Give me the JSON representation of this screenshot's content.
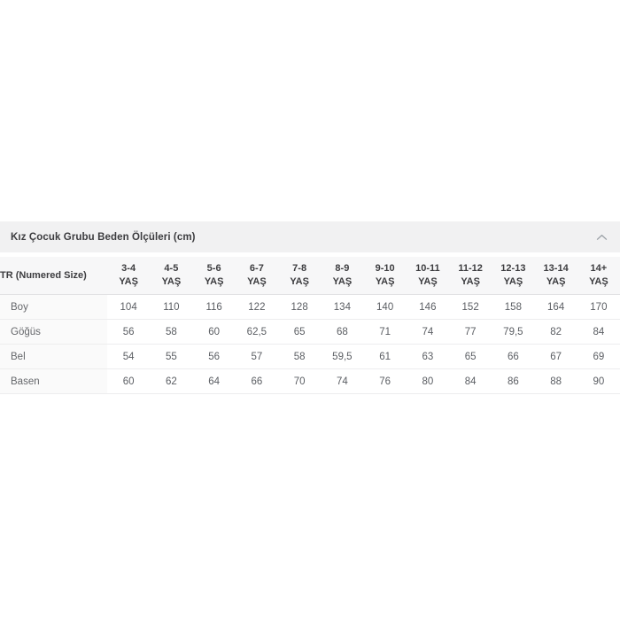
{
  "accordion": {
    "title": "Kız Çocuk Grubu Beden Ölçüleri (cm)",
    "state": "expanded",
    "chevron_icon": "chevron-up"
  },
  "table": {
    "corner_header": "TR (Numered Size)",
    "unit": "YAŞ",
    "columns": [
      "3-4",
      "4-5",
      "5-6",
      "6-7",
      "7-8",
      "8-9",
      "9-10",
      "10-11",
      "11-12",
      "12-13",
      "13-14",
      "14+"
    ],
    "rows": [
      {
        "label": "Boy",
        "values": [
          "104",
          "110",
          "116",
          "122",
          "128",
          "134",
          "140",
          "146",
          "152",
          "158",
          "164",
          "170"
        ]
      },
      {
        "label": "Göğüs",
        "values": [
          "56",
          "58",
          "60",
          "62,5",
          "65",
          "68",
          "71",
          "74",
          "77",
          "79,5",
          "82",
          "84"
        ]
      },
      {
        "label": "Bel",
        "values": [
          "54",
          "55",
          "56",
          "57",
          "58",
          "59,5",
          "61",
          "63",
          "65",
          "66",
          "67",
          "69"
        ]
      },
      {
        "label": "Basen",
        "values": [
          "60",
          "62",
          "64",
          "66",
          "70",
          "74",
          "76",
          "80",
          "84",
          "86",
          "88",
          "90"
        ]
      }
    ]
  },
  "colors": {
    "accordion_bg": "#f1f1f2",
    "table_header_bg": "#f7f7f8",
    "label_cell_bg": "#fafafa",
    "row_border": "#ededee",
    "header_border": "#e2e2e4",
    "title_text": "#3c3c3f",
    "cell_text": "#5b5e63",
    "chevron": "#9aa0a6"
  }
}
